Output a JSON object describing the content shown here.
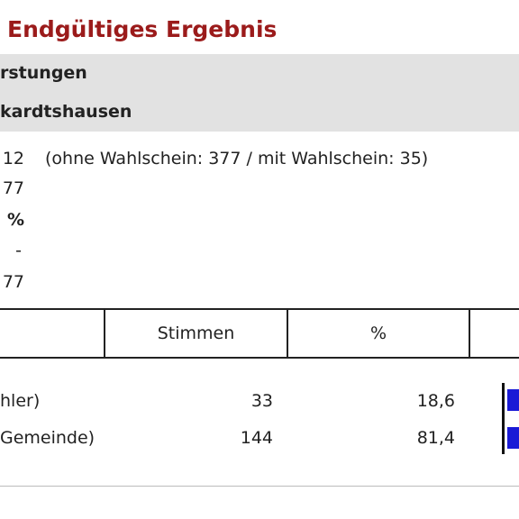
{
  "header": {
    "title": "Endgültiges Ergebnis"
  },
  "info": {
    "rows": [
      "rstungen",
      "kardtshausen"
    ]
  },
  "stats": [
    {
      "value": "12",
      "note": "(ohne Wahlschein: 377 / mit Wahlschein: 35)"
    },
    {
      "value": "77"
    },
    {
      "value": "%"
    },
    {
      "value": "-"
    },
    {
      "value": "77"
    }
  ],
  "table": {
    "columns": [
      "Stimmen",
      "%"
    ],
    "rows": [
      {
        "name": "hler)",
        "votes": "33",
        "percent": "18,6"
      },
      {
        "name": "Gemeinde)",
        "votes": "144",
        "percent": "81,4"
      }
    ]
  }
}
